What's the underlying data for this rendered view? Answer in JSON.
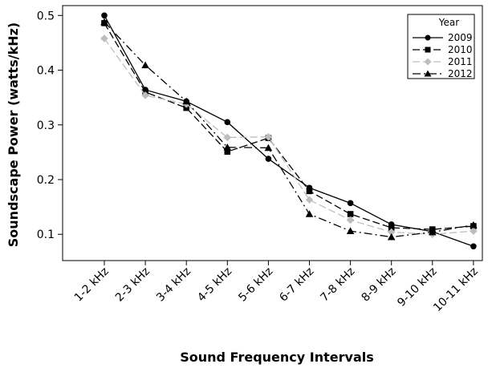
{
  "chart_data": {
    "type": "line",
    "categories": [
      "1-2 kHz",
      "2-3 kHz",
      "3-4 kHz",
      "4-5 kHz",
      "5-6 kHz",
      "6-7 kHz",
      "7-8 kHz",
      "8-9 kHz",
      "9-10 kHz",
      "10-11 kHz"
    ],
    "xlabel": "Sound Frequency Intervals",
    "ylabel": "Soundscape Power (watts/kHz)",
    "ylim": [
      0.052,
      0.518
    ],
    "yticks": [
      0.1,
      0.2,
      0.3,
      0.4,
      0.5
    ],
    "ytick_labels": [
      "0.1",
      "0.2",
      "0.3",
      "0.4",
      "0.5"
    ],
    "grid": false,
    "legend": {
      "title": "Year",
      "position": "top-right"
    },
    "series": [
      {
        "name": "2009",
        "marker": "circle",
        "dash": "solid",
        "color": "#000000",
        "values": [
          0.5,
          0.364,
          0.343,
          0.305,
          0.238,
          0.185,
          0.157,
          0.118,
          0.105,
          0.078
        ]
      },
      {
        "name": "2010",
        "marker": "square",
        "dash": "dashed",
        "color": "#000000",
        "values": [
          0.486,
          0.36,
          0.331,
          0.251,
          0.276,
          0.179,
          0.137,
          0.112,
          0.109,
          0.115
        ]
      },
      {
        "name": "2011",
        "marker": "diamond",
        "dash": "dashed",
        "color": "#bdbdbd",
        "values": [
          0.458,
          0.354,
          0.338,
          0.277,
          0.278,
          0.163,
          0.126,
          0.104,
          0.1,
          0.106
        ]
      },
      {
        "name": "2012",
        "marker": "triangle",
        "dash": "dashdot",
        "color": "#000000",
        "values": [
          0.488,
          0.409,
          0.343,
          0.259,
          0.258,
          0.137,
          0.106,
          0.095,
          0.104,
          0.117
        ]
      }
    ]
  }
}
